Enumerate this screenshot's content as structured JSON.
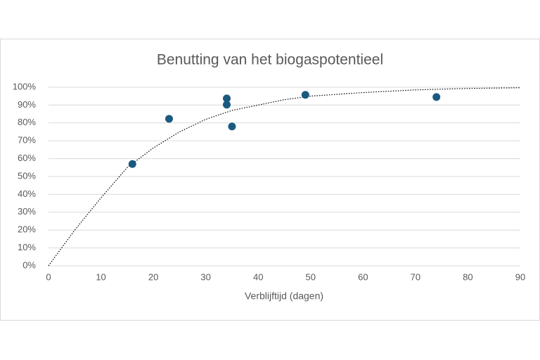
{
  "chart_data": {
    "type": "scatter",
    "title": "Benutting van het biogaspotentieel",
    "x_label": "Verblijftijd (dagen)",
    "x": [
      16,
      23,
      34,
      34,
      35,
      49,
      74
    ],
    "values": [
      57,
      82.3,
      93.7,
      90.2,
      78,
      95.7,
      94.5
    ],
    "color": "#1b5a80",
    "trendline": {
      "x": [
        0,
        5,
        10,
        15,
        20,
        25,
        30,
        35,
        40,
        45,
        50,
        60,
        70,
        80,
        90
      ],
      "values": [
        0,
        20,
        38,
        55,
        66,
        75,
        82,
        87,
        90,
        93,
        95,
        97,
        98.5,
        99.3,
        99.7
      ],
      "color": "#000000"
    },
    "xlim": [
      0,
      90
    ],
    "xticks": [
      0,
      10,
      20,
      30,
      40,
      50,
      60,
      70,
      80,
      90
    ],
    "ylim": [
      0,
      100
    ],
    "yticks": [
      {
        "value": 0,
        "label": "0%"
      },
      {
        "value": 10,
        "label": "10%"
      },
      {
        "value": 20,
        "label": "20%"
      },
      {
        "value": 30,
        "label": "30%"
      },
      {
        "value": 40,
        "label": "40%"
      },
      {
        "value": 50,
        "label": "50%"
      },
      {
        "value": 60,
        "label": "60%"
      },
      {
        "value": 70,
        "label": "70%"
      },
      {
        "value": 80,
        "label": "80%"
      },
      {
        "value": 90,
        "label": "90%"
      },
      {
        "value": 100,
        "label": "100%"
      }
    ],
    "grid": true
  }
}
